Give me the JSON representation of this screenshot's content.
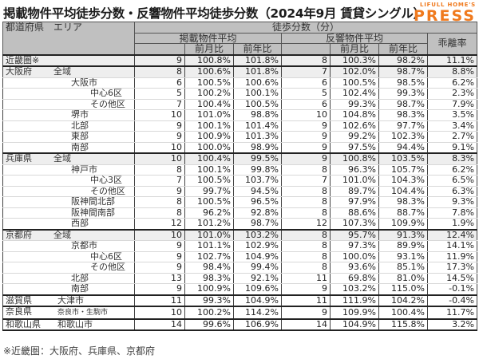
{
  "title": "掲載物件平均徒歩分数・反響物件平均徒歩分数（2024年9月 賃貸シングル）",
  "logo": {
    "top": "LIFULL HOME'S",
    "main": "PRESS",
    "color": "#f07a1e"
  },
  "header": {
    "area": "都道府県　エリア",
    "walk_minutes": "徒歩分数（分）",
    "listed_avg": "掲載物件平均",
    "inquiry_avg": "反響物件平均",
    "gap_rate": "乖離率",
    "mom": "前月比",
    "yoy": "前年比"
  },
  "rows": [
    {
      "pref": "近畿圏※",
      "area": "",
      "l": "9",
      "lm": "100.8%",
      "ly": "101.8%",
      "r": "8",
      "rm": "100.3%",
      "ry": "98.2%",
      "gap": "11.1%"
    },
    {
      "pref": "大阪府",
      "area": "全域",
      "l": "8",
      "lm": "100.6%",
      "ly": "101.8%",
      "r": "7",
      "rm": "102.0%",
      "ry": "98.7%",
      "gap": "8.8%"
    },
    {
      "pref": "",
      "area": "大阪市",
      "l": "6",
      "lm": "100.5%",
      "ly": "100.6%",
      "r": "6",
      "rm": "100.5%",
      "ry": "98.5%",
      "gap": "6.2%"
    },
    {
      "pref": "",
      "area": "中心6区",
      "l": "5",
      "lm": "100.2%",
      "ly": "100.1%",
      "r": "5",
      "rm": "102.4%",
      "ry": "99.3%",
      "gap": "2.3%"
    },
    {
      "pref": "",
      "area": "その他区",
      "l": "7",
      "lm": "100.4%",
      "ly": "100.5%",
      "r": "6",
      "rm": "99.3%",
      "ry": "98.7%",
      "gap": "7.9%"
    },
    {
      "pref": "",
      "area": "堺市",
      "l": "10",
      "lm": "101.0%",
      "ly": "98.8%",
      "r": "10",
      "rm": "104.8%",
      "ry": "98.3%",
      "gap": "3.5%"
    },
    {
      "pref": "",
      "area": "北部",
      "l": "9",
      "lm": "100.1%",
      "ly": "101.4%",
      "r": "9",
      "rm": "102.6%",
      "ry": "97.7%",
      "gap": "3.4%"
    },
    {
      "pref": "",
      "area": "東部",
      "l": "9",
      "lm": "100.9%",
      "ly": "101.3%",
      "r": "9",
      "rm": "99.2%",
      "ry": "102.3%",
      "gap": "2.7%"
    },
    {
      "pref": "",
      "area": "南部",
      "l": "10",
      "lm": "100.0%",
      "ly": "98.9%",
      "r": "9",
      "rm": "97.5%",
      "ry": "94.4%",
      "gap": "9.1%"
    },
    {
      "pref": "兵庫県",
      "area": "全域",
      "l": "10",
      "lm": "100.4%",
      "ly": "99.5%",
      "r": "9",
      "rm": "100.8%",
      "ry": "103.5%",
      "gap": "8.3%"
    },
    {
      "pref": "",
      "area": "神戸市",
      "l": "8",
      "lm": "100.1%",
      "ly": "99.8%",
      "r": "8",
      "rm": "96.3%",
      "ry": "105.7%",
      "gap": "6.2%"
    },
    {
      "pref": "",
      "area": "中心3区",
      "l": "7",
      "lm": "100.5%",
      "ly": "103.7%",
      "r": "7",
      "rm": "101.0%",
      "ry": "104.3%",
      "gap": "6.5%"
    },
    {
      "pref": "",
      "area": "その他区",
      "l": "9",
      "lm": "99.7%",
      "ly": "94.5%",
      "r": "8",
      "rm": "89.7%",
      "ry": "104.4%",
      "gap": "6.3%"
    },
    {
      "pref": "",
      "area": "阪神間北部",
      "l": "8",
      "lm": "100.5%",
      "ly": "96.5%",
      "r": "8",
      "rm": "97.9%",
      "ry": "98.3%",
      "gap": "9.3%"
    },
    {
      "pref": "",
      "area": "阪神間南部",
      "l": "8",
      "lm": "96.2%",
      "ly": "92.8%",
      "r": "8",
      "rm": "88.6%",
      "ry": "88.7%",
      "gap": "7.8%"
    },
    {
      "pref": "",
      "area": "西部",
      "l": "12",
      "lm": "101.2%",
      "ly": "98.7%",
      "r": "12",
      "rm": "107.3%",
      "ry": "109.9%",
      "gap": "1.9%"
    },
    {
      "pref": "京都府",
      "area": "全域",
      "l": "10",
      "lm": "101.0%",
      "ly": "103.2%",
      "r": "8",
      "rm": "95.7%",
      "ry": "91.3%",
      "gap": "12.4%"
    },
    {
      "pref": "",
      "area": "京都市",
      "l": "9",
      "lm": "101.1%",
      "ly": "102.9%",
      "r": "8",
      "rm": "97.3%",
      "ry": "89.9%",
      "gap": "14.1%"
    },
    {
      "pref": "",
      "area": "中心6区",
      "l": "9",
      "lm": "102.7%",
      "ly": "104.9%",
      "r": "8",
      "rm": "100.0%",
      "ry": "93.1%",
      "gap": "11.9%"
    },
    {
      "pref": "",
      "area": "その他区",
      "l": "9",
      "lm": "98.4%",
      "ly": "99.4%",
      "r": "8",
      "rm": "93.6%",
      "ry": "85.1%",
      "gap": "17.3%"
    },
    {
      "pref": "",
      "area": "北部",
      "l": "13",
      "lm": "98.3%",
      "ly": "92.1%",
      "r": "11",
      "rm": "69.8%",
      "ry": "81.0%",
      "gap": "14.5%"
    },
    {
      "pref": "",
      "area": "南部",
      "l": "9",
      "lm": "100.9%",
      "ly": "109.6%",
      "r": "9",
      "rm": "103.2%",
      "ry": "115.0%",
      "gap": "-0.1%"
    },
    {
      "pref": "滋賀県",
      "area": "大津市",
      "l": "11",
      "lm": "99.3%",
      "ly": "104.9%",
      "r": "11",
      "rm": "111.9%",
      "ry": "104.2%",
      "gap": "-0.4%"
    },
    {
      "pref": "奈良県",
      "area": "奈良市・生駒市",
      "l": "10",
      "lm": "100.2%",
      "ly": "114.2%",
      "r": "9",
      "rm": "109.9%",
      "ry": "100.4%",
      "gap": "11.7%"
    },
    {
      "pref": "和歌山県",
      "area": "和歌山市",
      "l": "14",
      "lm": "99.6%",
      "ly": "106.9%",
      "r": "14",
      "rm": "104.9%",
      "ry": "115.8%",
      "gap": "3.2%"
    }
  ],
  "footnote": "※近畿圏：大阪府、兵庫県、京都府"
}
